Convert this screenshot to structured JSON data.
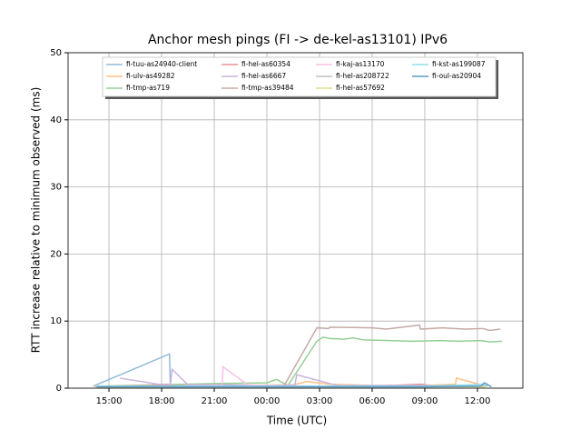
{
  "chart_data": {
    "type": "line",
    "title": "Anchor mesh pings (FI -> de-kel-as13101) IPv6",
    "xlabel": "Time (UTC)",
    "ylabel": "RTT increase relative to minimum observed (ms)",
    "xlim": [
      12.67,
      38.59
    ],
    "xticks": [
      {
        "value": 15,
        "label": "15:00"
      },
      {
        "value": 18,
        "label": "18:00"
      },
      {
        "value": 21,
        "label": "21:00"
      },
      {
        "value": 24,
        "label": "00:00"
      },
      {
        "value": 27,
        "label": "03:00"
      },
      {
        "value": 30,
        "label": "06:00"
      },
      {
        "value": 33,
        "label": "09:00"
      },
      {
        "value": 36,
        "label": "12:00"
      }
    ],
    "ylim": [
      0,
      50
    ],
    "yticks": [
      0,
      10,
      20,
      30,
      40,
      50
    ],
    "grid": true,
    "legend": "upper center",
    "series": [
      {
        "name": "fi-tuu-as24940-client",
        "color": "#8fbbd9",
        "x": [
          14.1,
          18.45,
          18.5,
          21,
          24,
          27,
          30,
          33,
          36
        ],
        "values": [
          0.3,
          5.1,
          0.3,
          0.3,
          0.2,
          0.3,
          0.3,
          0.3,
          0.3
        ]
      },
      {
        "name": "fi-ulv-as49282",
        "color": "#ffbf86",
        "x": [
          14.2,
          18,
          22,
          25.5,
          26.3,
          27.5,
          30,
          33,
          34.75,
          34.8,
          36.5
        ],
        "values": [
          0.2,
          0.3,
          0.4,
          0.5,
          1.0,
          0.6,
          0.4,
          0.4,
          0.6,
          1.5,
          0.3
        ]
      },
      {
        "name": "fi-tmp-as719",
        "color": "#95cf95",
        "x": [
          14.3,
          18,
          21,
          24,
          24.55,
          25.2,
          26.85,
          27.2,
          27.6,
          28.4,
          28.9,
          29.5,
          31,
          32.3,
          33.9,
          35,
          36.2,
          36.7,
          37.4
        ],
        "values": [
          0.3,
          0.5,
          0.7,
          0.8,
          1.3,
          0.4,
          7.0,
          7.6,
          7.4,
          7.3,
          7.5,
          7.2,
          7.1,
          7.0,
          7.1,
          7.0,
          7.1,
          6.9,
          7.0
        ]
      },
      {
        "name": "fi-hel-as60354",
        "color": "#ea9293",
        "x": [
          14.3,
          18,
          21,
          24,
          27,
          30,
          32.8,
          33.5,
          36
        ],
        "values": [
          0.3,
          0.4,
          0.3,
          0.3,
          0.3,
          0.3,
          0.6,
          0.3,
          0.3
        ]
      },
      {
        "name": "fi-hel-as6667",
        "color": "#c9b3de",
        "x": [
          15.62,
          17.8,
          18.5,
          18.6,
          19.5,
          22,
          24,
          25.6,
          25.7,
          28,
          32,
          36
        ],
        "values": [
          1.5,
          0.6,
          0.6,
          2.8,
          0.5,
          0.5,
          0.4,
          0.5,
          2.0,
          0.4,
          0.4,
          0.3
        ]
      },
      {
        "name": "fi-tmp-as39484",
        "color": "#c5aaa5",
        "x": [
          14.3,
          18,
          21,
          24,
          24.99,
          26.85,
          27.5,
          27.6,
          30,
          30.8,
          32.7,
          32.75,
          34,
          35.3,
          36.3,
          36.7,
          37.3
        ],
        "values": [
          0.2,
          0.3,
          0.3,
          0.3,
          0.4,
          9.0,
          8.9,
          9.1,
          9.0,
          8.8,
          9.4,
          8.8,
          9.0,
          8.8,
          8.9,
          8.6,
          8.8
        ]
      },
      {
        "name": "fi-kaj-as13170",
        "color": "#f7bfe3",
        "x": [
          14.3,
          18,
          21.45,
          21.5,
          22.9,
          24,
          27,
          30,
          33,
          36
        ],
        "values": [
          0.2,
          0.3,
          0.4,
          3.2,
          0.5,
          0.4,
          0.3,
          0.3,
          0.3,
          0.3
        ]
      },
      {
        "name": "fi-hel-as208722",
        "color": "#bfbfbf",
        "x": [
          14.3,
          18,
          21,
          24,
          27,
          30,
          33,
          36.5
        ],
        "values": [
          0.3,
          0.3,
          0.3,
          0.3,
          0.3,
          0.3,
          0.3,
          0.3
        ]
      },
      {
        "name": "fi-hel-as57692",
        "color": "#dede8a",
        "x": [
          14.3,
          18,
          21,
          24,
          27,
          30,
          33,
          36.5
        ],
        "values": [
          0.1,
          0.2,
          0.2,
          0.2,
          0.2,
          0.2,
          0.2,
          0.2
        ]
      },
      {
        "name": "fi-kst-as199087",
        "color": "#8bdde8",
        "x": [
          14.3,
          18,
          21,
          24,
          27,
          30,
          33,
          35.8,
          36.3,
          36.6
        ],
        "values": [
          0.3,
          0.3,
          0.3,
          0.3,
          0.3,
          0.3,
          0.3,
          0.5,
          0.6,
          0.3
        ]
      },
      {
        "name": "fi-oul-as20904",
        "color": "#5f9bc9",
        "x": [
          14.3,
          18,
          21,
          24,
          27,
          30,
          33,
          36.2,
          36.4,
          36.8
        ],
        "values": [
          0.2,
          0.2,
          0.2,
          0.2,
          0.2,
          0.2,
          0.2,
          0.3,
          0.8,
          0.2
        ]
      }
    ]
  }
}
